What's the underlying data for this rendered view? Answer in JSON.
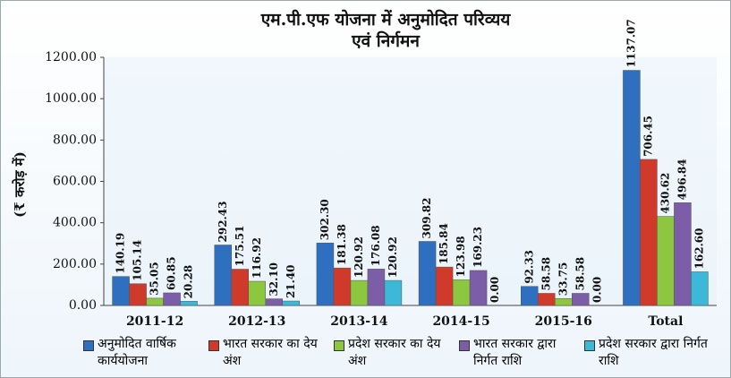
{
  "chart_data": {
    "type": "bar",
    "title": [
      "एम.पी.एफ योजना में अनुमोदित परिव्यय",
      "एवं निर्गमन"
    ],
    "y_label": "(₹ करोड़ में)",
    "categories": [
      "2011-12",
      "2012-13",
      "2013-14",
      "2014-15",
      "2015-16",
      "Total"
    ],
    "series": [
      {
        "name": "अनुमोदित वार्षिक कार्ययोजना",
        "color": "#2e6fbf",
        "values": [
          140.19,
          292.43,
          302.3,
          309.82,
          92.33,
          1137.07
        ],
        "value_labels": [
          "140.19",
          "292.43",
          "302.30",
          "309.82",
          "92.33",
          "1137.07"
        ]
      },
      {
        "name": "भारत सरकार का देय अंश",
        "color": "#d03a2a",
        "values": [
          105.14,
          175.51,
          181.38,
          185.84,
          58.58,
          706.45
        ],
        "value_labels": [
          "105.14",
          "175.51",
          "181.38",
          "185.84",
          "58.58",
          "706.45"
        ]
      },
      {
        "name": "प्रदेश सरकार का देय अंश",
        "color": "#8dc63f",
        "values": [
          35.05,
          116.92,
          120.92,
          123.98,
          33.75,
          430.62
        ],
        "value_labels": [
          "35.05",
          "116.92",
          "120.92",
          "123.98",
          "33.75",
          "430.62"
        ]
      },
      {
        "name": "भारत सरकार द्वारा निर्गत राशि",
        "color": "#7b5ea7",
        "values": [
          60.85,
          32.1,
          176.08,
          169.23,
          58.58,
          496.84
        ],
        "value_labels": [
          "60.85",
          "32.10",
          "176.08",
          "169.23",
          "58.58",
          "496.84"
        ]
      },
      {
        "name": "प्रदेश सरकार द्वारा निर्गत राशि",
        "color": "#3cb8d8",
        "values": [
          20.28,
          21.4,
          120.92,
          0,
          0,
          162.6
        ],
        "value_labels": [
          "20.28",
          "21.40",
          "120.92",
          "0.00",
          "0.00",
          "162.60"
        ]
      }
    ],
    "ylim": [
      0,
      1200
    ],
    "yticks": [
      {
        "value": 0,
        "label": "0.00"
      },
      {
        "value": 200,
        "label": "200.00"
      },
      {
        "value": 400,
        "label": "400.00"
      },
      {
        "value": 600,
        "label": "600.00"
      },
      {
        "value": 800,
        "label": "800.00"
      },
      {
        "value": 1000,
        "label": "1000.00"
      },
      {
        "value": 1200,
        "label": "1200.00"
      }
    ]
  }
}
